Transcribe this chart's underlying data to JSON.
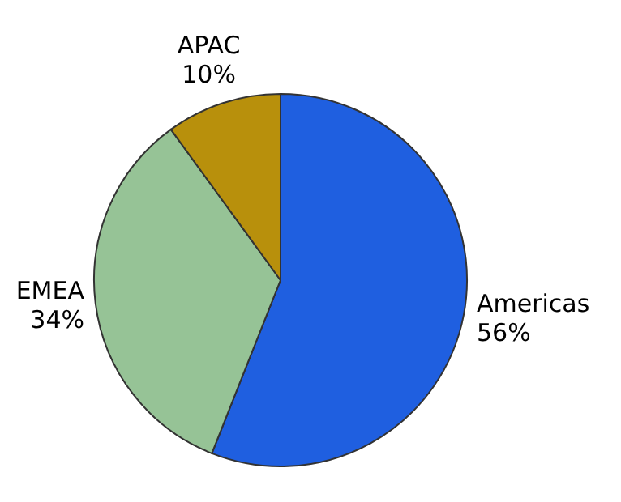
{
  "chart_data": {
    "type": "pie",
    "categories": [
      "Americas",
      "EMEA",
      "APAC"
    ],
    "values": [
      56,
      34,
      10
    ],
    "colors": [
      "#1f5fe0",
      "#96c396",
      "#b8900c"
    ],
    "value_labels": [
      "56%",
      "34%",
      "10%"
    ]
  }
}
